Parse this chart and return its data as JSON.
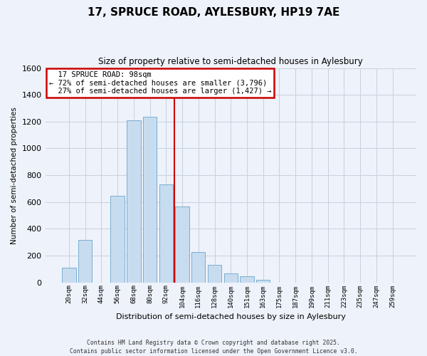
{
  "title": "17, SPRUCE ROAD, AYLESBURY, HP19 7AE",
  "subtitle": "Size of property relative to semi-detached houses in Aylesbury",
  "xlabel": "Distribution of semi-detached houses by size in Aylesbury",
  "ylabel": "Number of semi-detached properties",
  "bar_labels": [
    "20sqm",
    "32sqm",
    "44sqm",
    "56sqm",
    "68sqm",
    "80sqm",
    "92sqm",
    "104sqm",
    "116sqm",
    "128sqm",
    "140sqm",
    "151sqm",
    "163sqm",
    "175sqm",
    "187sqm",
    "199sqm",
    "211sqm",
    "223sqm",
    "235sqm",
    "247sqm",
    "259sqm"
  ],
  "bar_values": [
    110,
    315,
    0,
    645,
    1210,
    1235,
    730,
    565,
    225,
    130,
    65,
    45,
    18,
    0,
    0,
    0,
    0,
    0,
    0,
    0,
    0
  ],
  "bar_color": "#c8dcf0",
  "bar_edge_color": "#7aaed0",
  "property_label": "17 SPRUCE ROAD: 98sqm",
  "pct_smaller": 72,
  "pct_smaller_count": "3,796",
  "pct_larger": 27,
  "pct_larger_count": "1,427",
  "vline_color": "#cc0000",
  "ylim_max": 1600,
  "yticks": [
    0,
    200,
    400,
    600,
    800,
    1000,
    1200,
    1400,
    1600
  ],
  "annotation_box_fill": "#ffffff",
  "annotation_box_edge": "#cc0000",
  "footer1": "Contains HM Land Registry data © Crown copyright and database right 2025.",
  "footer2": "Contains public sector information licensed under the Open Government Licence v3.0.",
  "bg_color": "#eef2fa",
  "grid_color": "#c8d0e0"
}
